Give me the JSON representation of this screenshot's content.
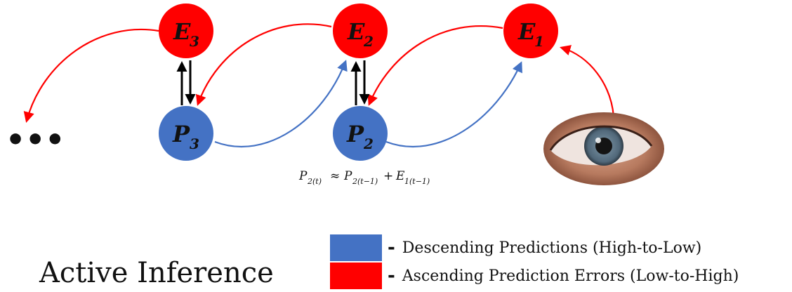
{
  "colors": {
    "prediction_node": "#4472c4",
    "error_node": "#ff0000",
    "prediction_arrow": "#4472c4",
    "error_arrow": "#ff0000",
    "vertical_arrow": "#000000"
  },
  "nodes": {
    "e3": {
      "letter": "E",
      "sub": "3"
    },
    "e2": {
      "letter": "E",
      "sub": "2"
    },
    "e1": {
      "letter": "E",
      "sub": "1"
    },
    "p3": {
      "letter": "P",
      "sub": "3"
    },
    "p2": {
      "letter": "P",
      "sub": "2"
    }
  },
  "ellipsis": "•••",
  "formula": {
    "p": "P",
    "sub_t": "2(t)",
    "approx": "≈",
    "sub_t1": "2(t−1)",
    "plus": "+",
    "e": "E",
    "sub_e": "1(t−1)"
  },
  "eye_icon": "eye-icon",
  "title": "Active Inference",
  "legend": [
    {
      "color": "#4472c4",
      "dash": "-",
      "label": "Descending Predictions (High-to-Low)"
    },
    {
      "color": "#ff0000",
      "dash": "-",
      "label": "Ascending Prediction Errors (Low-to-High)"
    }
  ]
}
